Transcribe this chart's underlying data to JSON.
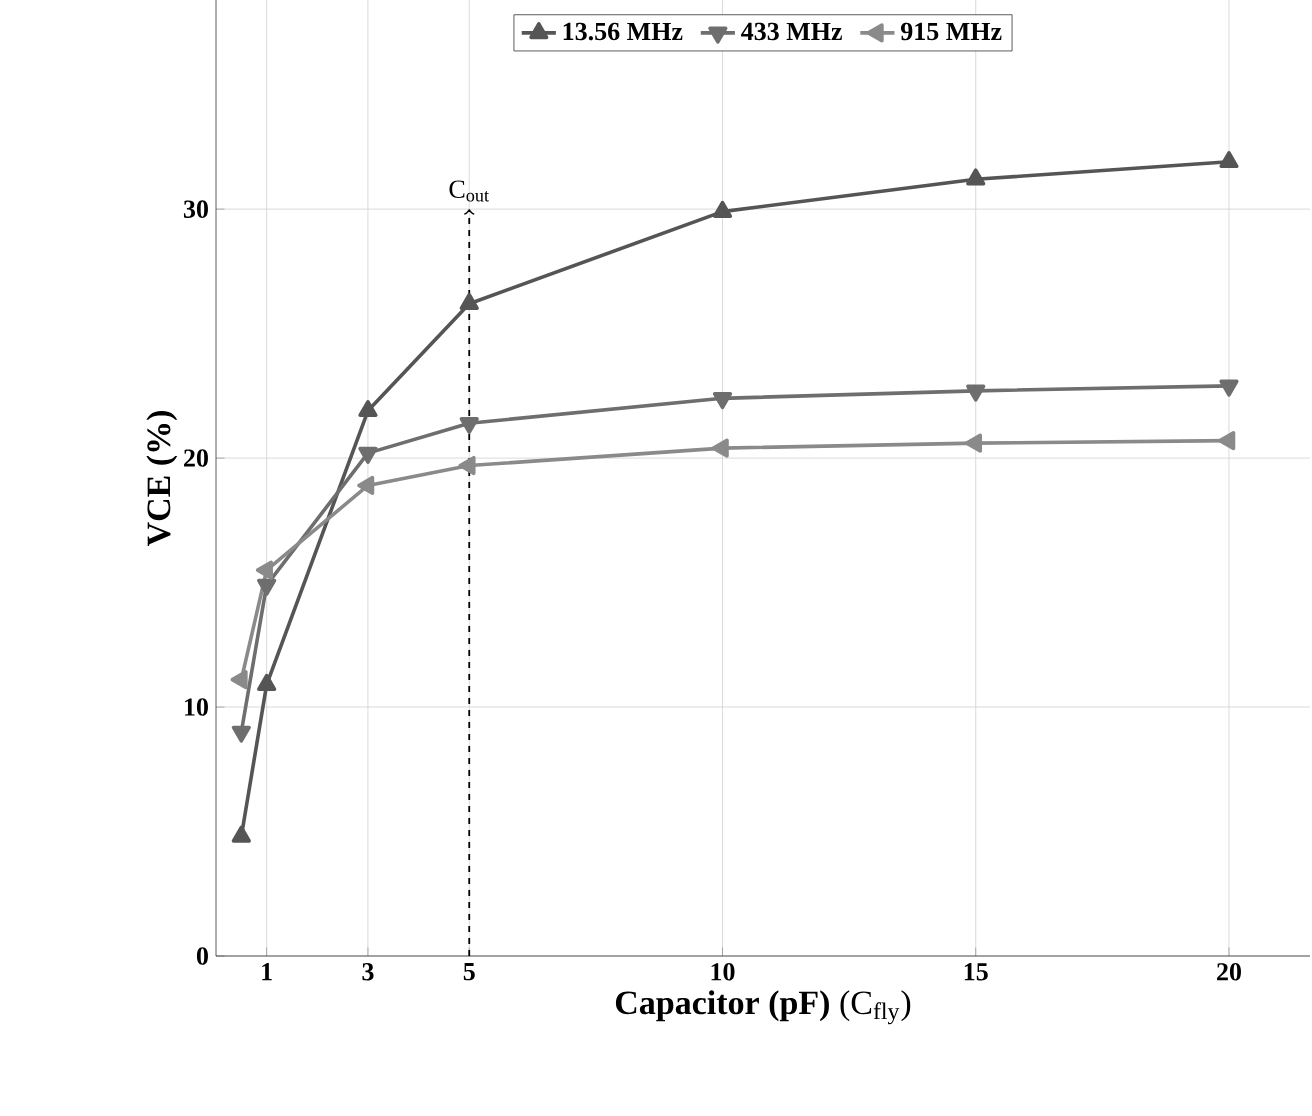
{
  "chart_data": {
    "type": "line",
    "xlabel": "**Capacitor (pF)** (C$_{fly}$)",
    "ylabel": "VCE (%)",
    "x": [
      0.5,
      1,
      3,
      5,
      10,
      15,
      20
    ],
    "series": [
      {
        "name": "13.56 MHz",
        "color": "#555555",
        "marker": "triangle",
        "values": [
          4.8,
          10.9,
          21.9,
          26.2,
          29.9,
          31.2,
          31.9
        ]
      },
      {
        "name": "433 MHz",
        "color": "#6e6e6e",
        "marker": "triangle down",
        "values": [
          9.0,
          14.9,
          20.2,
          21.4,
          22.4,
          22.7,
          22.9
        ]
      },
      {
        "name": "915 MHz",
        "color": "#8a8a8a",
        "marker": "triangle left",
        "values": [
          11.1,
          15.5,
          18.9,
          19.7,
          20.4,
          20.6,
          20.7
        ]
      }
    ],
    "xlim": [
      0,
      21.6
    ],
    "ylim": [
      0,
      38.4
    ],
    "xticks": [
      1,
      3,
      5,
      10,
      15,
      20
    ],
    "yticks": [
      0,
      10,
      20,
      30
    ],
    "grid": true,
    "legend": "top",
    "line_style": "solid",
    "ref_lines": [
      {
        "axis": "x",
        "value": 5,
        "label": "C$_{out}$",
        "line_style": "dashed",
        "color": "#000000"
      }
    ]
  }
}
